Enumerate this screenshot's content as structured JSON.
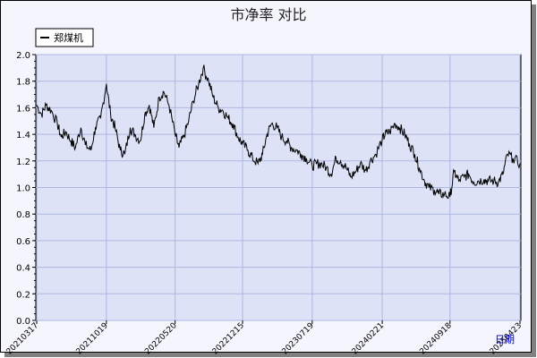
{
  "chart_data": {
    "type": "line",
    "title": "市净率  对比",
    "xlabel": "日期",
    "ylabel": "",
    "ylim": [
      0,
      2.0
    ],
    "y_ticks": [
      0.0,
      0.2,
      0.4,
      0.6,
      0.8,
      1.0,
      1.2,
      1.4,
      1.6,
      1.8,
      2.0
    ],
    "x_tick_labels": [
      "20210317",
      "20211019",
      "20220520",
      "20221215",
      "20230719",
      "20240221",
      "20240918",
      "20250423"
    ],
    "grid": true,
    "legend_position": "top-left",
    "colors": {
      "background": "#dde2f7",
      "line": "#000000",
      "grid": "#aeb7e0"
    },
    "series": [
      {
        "name": "郑煤机",
        "x": [
          "20210317",
          "20210401",
          "20210415",
          "20210501",
          "20210520",
          "20210601",
          "20210615",
          "20210701",
          "20210715",
          "20210801",
          "20210815",
          "20210901",
          "20210915",
          "20211001",
          "20211019",
          "20211101",
          "20211115",
          "20211201",
          "20211215",
          "20220101",
          "20220115",
          "20220201",
          "20220215",
          "20220301",
          "20220315",
          "20220401",
          "20220415",
          "20220501",
          "20220520",
          "20220601",
          "20220615",
          "20220701",
          "20220715",
          "20220801",
          "20220815",
          "20220901",
          "20220915",
          "20221001",
          "20221015",
          "20221101",
          "20221115",
          "20221201",
          "20221215",
          "20230101",
          "20230115",
          "20230201",
          "20230215",
          "20230301",
          "20230315",
          "20230401",
          "20230415",
          "20230501",
          "20230515",
          "20230601",
          "20230615",
          "20230701",
          "20230719",
          "20230801",
          "20230815",
          "20230901",
          "20230915",
          "20231001",
          "20231015",
          "20231101",
          "20231115",
          "20231201",
          "20231215",
          "20240101",
          "20240115",
          "20240201",
          "20240221",
          "20240301",
          "20240315",
          "20240401",
          "20240415",
          "20240501",
          "20240515",
          "20240601",
          "20240615",
          "20240701",
          "20240715",
          "20240801",
          "20240815",
          "20240901",
          "20240918",
          "20241001",
          "20241015",
          "20241101",
          "20241115",
          "20241201",
          "20241215",
          "20250101",
          "20250115",
          "20250201",
          "20250215",
          "20250301",
          "20250315",
          "20250401",
          "20250423"
        ],
        "values": [
          1.62,
          1.55,
          1.62,
          1.58,
          1.48,
          1.38,
          1.42,
          1.35,
          1.3,
          1.45,
          1.32,
          1.28,
          1.45,
          1.52,
          1.78,
          1.55,
          1.45,
          1.28,
          1.25,
          1.45,
          1.4,
          1.35,
          1.55,
          1.62,
          1.45,
          1.68,
          1.72,
          1.62,
          1.4,
          1.3,
          1.38,
          1.5,
          1.65,
          1.78,
          1.9,
          1.8,
          1.68,
          1.6,
          1.58,
          1.52,
          1.48,
          1.38,
          1.33,
          1.28,
          1.22,
          1.18,
          1.25,
          1.4,
          1.48,
          1.45,
          1.38,
          1.35,
          1.3,
          1.28,
          1.25,
          1.22,
          1.16,
          1.18,
          1.18,
          1.15,
          1.1,
          1.22,
          1.2,
          1.15,
          1.08,
          1.12,
          1.18,
          1.13,
          1.2,
          1.25,
          1.36,
          1.4,
          1.42,
          1.48,
          1.45,
          1.4,
          1.33,
          1.25,
          1.15,
          1.05,
          1.0,
          0.98,
          0.95,
          0.95,
          0.93,
          1.12,
          1.05,
          1.08,
          1.1,
          1.04,
          1.05,
          1.06,
          1.05,
          1.05,
          1.04,
          1.1,
          1.25,
          1.22,
          1.18
        ]
      }
    ]
  }
}
